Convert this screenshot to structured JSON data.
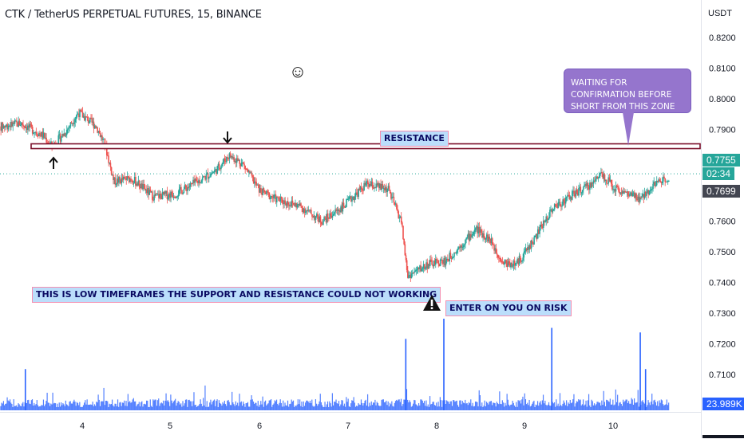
{
  "header": {
    "title": "CTK / TetherUS PERPETUAL FUTURES, 15, BINANCE"
  },
  "price_axis": {
    "unit": "USDT",
    "ticks": [
      "0.8200",
      "0.8100",
      "0.8000",
      "0.7900",
      "0.7600",
      "0.7500",
      "0.7400",
      "0.7300",
      "0.7200",
      "0.7100"
    ],
    "tags": {
      "last_price": "0.7755",
      "countdown": "02:34",
      "prev_price": "0.7699",
      "volume": "23.989K"
    },
    "colors": {
      "last": "#26a69a",
      "prev": "#434651",
      "volume": "#2962ff"
    }
  },
  "time_axis": {
    "labels": [
      "4",
      "5",
      "6",
      "7",
      "8",
      "9",
      "10"
    ]
  },
  "annotations": {
    "resistance_label": "RESISTANCE",
    "bubble_text": "WAITING FOR CONFIRMATION BEFORE SHORT FROM THIS ZONE",
    "low_tf_note": "THIS IS LOW TIMEFRAMES THE SUPPORT AND RESISTANCE COULD NOT WORKING",
    "risk_note": "ENTER ON YOU ON RISK",
    "smiley_icon": "smiley-face-icon",
    "warning_icon": "warning-triangle-icon",
    "up_arrow_icon": "arrow-up-icon",
    "down_arrow_icon": "arrow-down-icon"
  },
  "chart_data": {
    "type": "candlestick",
    "symbol": "CTK/USDT",
    "timeframe": "15",
    "ylim": [
      0.7045,
      0.8275
    ],
    "x_days": [
      "4",
      "5",
      "6",
      "7",
      "8",
      "9",
      "10"
    ],
    "resistance_level": 0.7845,
    "last_price": 0.7755,
    "prev_price": 0.7699,
    "volume_last": "23.989K",
    "path_closes": [
      [
        3.0,
        0.7905
      ],
      [
        3.3,
        0.792
      ],
      [
        3.55,
        0.788
      ],
      [
        3.65,
        0.7845
      ],
      [
        3.8,
        0.789
      ],
      [
        3.95,
        0.7955
      ],
      [
        4.15,
        0.791
      ],
      [
        4.25,
        0.785
      ],
      [
        4.35,
        0.773
      ],
      [
        4.55,
        0.774
      ],
      [
        4.8,
        0.768
      ],
      [
        5.05,
        0.769
      ],
      [
        5.3,
        0.773
      ],
      [
        5.5,
        0.7765
      ],
      [
        5.65,
        0.7815
      ],
      [
        5.8,
        0.779
      ],
      [
        6.0,
        0.77
      ],
      [
        6.2,
        0.767
      ],
      [
        6.45,
        0.765
      ],
      [
        6.7,
        0.76
      ],
      [
        6.95,
        0.765
      ],
      [
        7.2,
        0.772
      ],
      [
        7.45,
        0.7705
      ],
      [
        7.6,
        0.76
      ],
      [
        7.67,
        0.742
      ],
      [
        7.9,
        0.746
      ],
      [
        8.1,
        0.747
      ],
      [
        8.3,
        0.753
      ],
      [
        8.45,
        0.7575
      ],
      [
        8.6,
        0.754
      ],
      [
        8.75,
        0.7465
      ],
      [
        8.9,
        0.746
      ],
      [
        9.1,
        0.754
      ],
      [
        9.3,
        0.764
      ],
      [
        9.55,
        0.769
      ],
      [
        9.75,
        0.772
      ],
      [
        9.85,
        0.776
      ],
      [
        10.0,
        0.771
      ],
      [
        10.15,
        0.769
      ],
      [
        10.3,
        0.767
      ],
      [
        10.45,
        0.772
      ],
      [
        10.65,
        0.775
      ]
    ],
    "volume_spikes": [
      [
        3.35,
        0.45
      ],
      [
        7.65,
        0.78
      ],
      [
        8.08,
        1.0
      ],
      [
        9.3,
        0.9
      ],
      [
        10.3,
        0.85
      ],
      [
        10.36,
        0.45
      ]
    ]
  }
}
